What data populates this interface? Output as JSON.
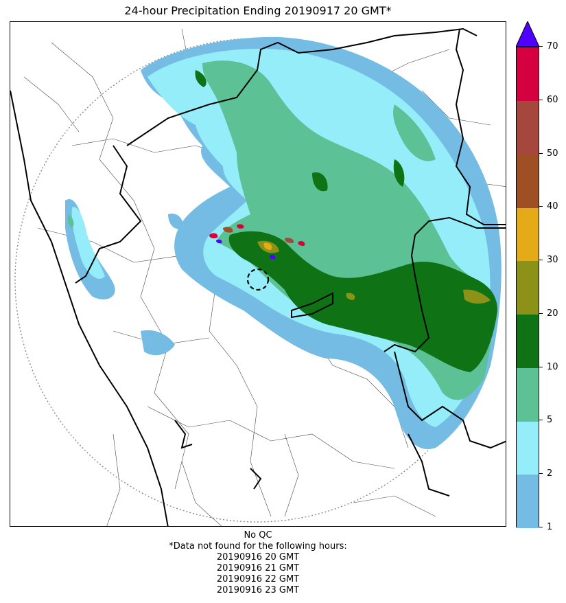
{
  "title": "24-hour Precipitation Ending 20190917 20 GMT*",
  "colorbar": {
    "levels": [
      "1",
      "2",
      "5",
      "10",
      "20",
      "30",
      "40",
      "50",
      "60",
      "70"
    ],
    "colors": [
      "#74bce3",
      "#95edfa",
      "#5cc195",
      "#0f7316",
      "#8b9217",
      "#e5aa17",
      "#9e4f23",
      "#a6473e",
      "#d4003f"
    ],
    "extend_color": "#5000ff"
  },
  "footer": {
    "qc": "No QC",
    "note": "*Data not found for the following hours:",
    "missing_hours": [
      "20190916 20 GMT",
      "20190916 21 GMT",
      "20190916 22 GMT",
      "20190916 23 GMT"
    ]
  }
}
